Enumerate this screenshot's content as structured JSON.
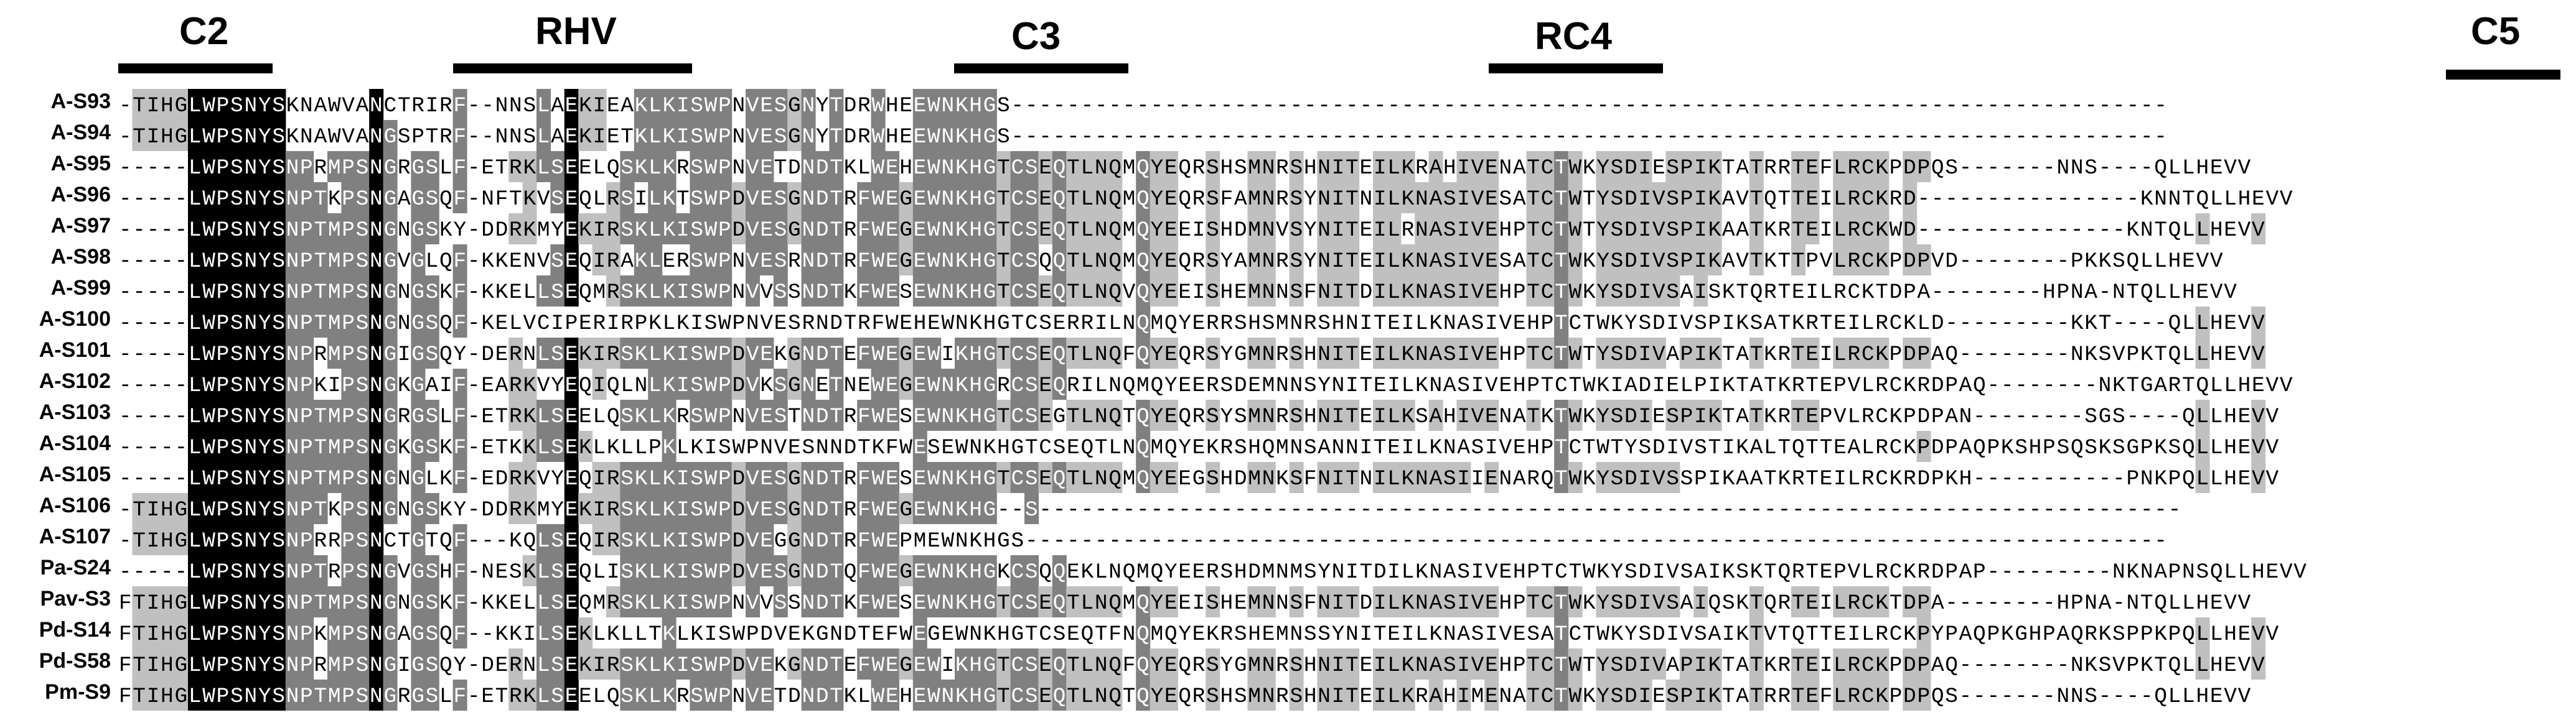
{
  "regions": [
    "C2",
    "RHV",
    "C3",
    "RC4",
    "C5"
  ],
  "rows": [
    {
      "label": "A-S93",
      "seq": "-TIHGLWPSNYSKNAWVANCTRIRF--NNSLAEKIEAKLKISWPNVESGNYTDRWHEEWNKHGS-----------------------------------------------------------------------------------"
    },
    {
      "label": "A-S94",
      "seq": "-TIHGLWPSNYSKNAWVANGSPTRF--NNSLAEKIETKLKISWPNVESGNYTDRWHEEWNKHGS-----------------------------------------------------------------------------------"
    },
    {
      "label": "A-S95",
      "seq": "-----LWPSNYSNPRMPSNGRGSLF-ETRKLSEELQSKLKRSWPNVETDNDTKLWEHEWNKHGTCSEQTLNQMQYEQRSHSMNRSHNITEILKRAHIVENATCTWKYSDIESPIKTATRRTEFLRCKPDPQS-------NNS----QLLHEVV"
    },
    {
      "label": "A-S96",
      "seq": "-----LWPSNYSNPTKPSNGAGSQF-NFTKVSEQLRSILKTSWPDVESGNDTRFWEGEWNKHGTCSEQTLNQMQYEQRSFAMNRSYNITNILKNASIVESATCTWTYSDIVSPIKAVTQTTEILRCKRD----------------KNNTQLLHEVV"
    },
    {
      "label": "A-S97",
      "seq": "-----LWPSNYSNPTMPSNGNGSKY-DDRKMYEKIRSKLKISWPDVESGNDTRFWEGEWNKHGTCSEQTLNQMQYEEISHDMNVSYNITEILRNASIVEHPTCTWTYSDIVSPIKAATKRTEILRCKWD---------------KNTQLLHEVV"
    },
    {
      "label": "A-S98",
      "seq": "-----LWPSNYSNPTMPSNGVGLQF-KKENVSEQIRAKLERSWPNVESRNDTRFWEGEWNKHGTCSQQTLNQMQYEQRSYAMNRSYNITEILKNASIVESATCTWKYSDIVSPIKAVTKTTPVLRCKPDPVD--------PKKSQLLHEVV"
    },
    {
      "label": "A-S99",
      "seq": "-----LWPSNYSNPTMPSNGNGSKF-KKELLSEQMRSKLKISWPNVVSSNDTKFWESEWNKHGTCSEQTLNQVQYEEISHEMNNSFNITDILKNASIVEHPTCTWKYSDIVSAISKTQRTEILRCKTDPA--------HPNA-NTQLLHEVV"
    },
    {
      "label": "A-S100",
      "seq": "-----LWPSNYSNPTMPSNGNGSQF-KELVCIPERIRPKLKISWPNVESRNDTRFWEHEWNKHGTCSERRILNQMQYERRSHSMNRSHNITEILKNASIVEHPTCTWKYSDIVSPIKSATKRTEILRCKLD---------KKT----QLLHEVV"
    },
    {
      "label": "A-S101",
      "seq": "-----LWPSNYSNPRMPSNGIGSQY-DERNLSEKIRSKLKISWPDVEKGNDTEFWEGEWIKHGTCSEQTLNQFQYEQRSYGMNRSHNITEILKNASIVEHPTCTWTYSDIVAPIKTATKRTEILRCKPDPAQ--------NKSVPKTQLLHEVV"
    },
    {
      "label": "A-S102",
      "seq": "-----LWPSNYSNPKIPSNGKGAIF-EARKVYEQIQLNLKISWPDVKSGNETNEWEGEWNKHGRCSEQRILNQMQYEERSDEMNNSYNITEILKNASIVEHPTCTWKIADIELPIKTATKRTEPVLRCKRDPAQ--------NKTGARTQLLHEVV"
    },
    {
      "label": "A-S103",
      "seq": "-----LWPSNYSNPTMPSNGRGSLF-ETRKLSEELQSKLKRSWPNVESTNDTRFWESEWNKHGTCSEGTLNQTQYEQRSYSMNRSHNITEILKSAHIVENATKTWKYSDIESPIKTATKRTEPVLRCKPDPAN--------SGS----QLLHEVV"
    },
    {
      "label": "A-S104",
      "seq": "-----LWPSNYSNPTMPSNGKGSKF-ETKKLSEKLKLLPKLKISWPNVESNNDTKFWESEWNKHGTCSEQTLNQMQYEKRSHQMNSANNITEILKNASIVEHPTCTWTYSDIVSTIKALTQTTEALRCKPDPAQPKSHPSQSKSGPKSQLLHEVV"
    },
    {
      "label": "A-S105",
      "seq": "-----LWPSNYSNPTMPSNGNGLKF-EDRKVYEQIRSKLKISWPDVESGNDTRFWESEWNKHGTCSEQTLNQMQYEEGSHDMNKSFNITNILKNASIIENARQTWKYSDIVSSPIKAATKRTEILRCKRDPKH-----------PNKPQLLHEVV"
    },
    {
      "label": "A-S106",
      "seq": "-TIHGLWPSNYSNPTKPSNGNGSKY-DDRKMYEKIRSKLKISWPDVESGNDTRFWEGEWNKHG--S----------------------------------------------------------------------------------"
    },
    {
      "label": "A-S107",
      "seq": "-TIHGLWPSNYSNPRRPSNCTGTQF---KQLSEQIRSKLKISWPDVEGGNDTRFWEPMEWNKHGS----------------------------------------------------------------------------------"
    },
    {
      "label": "Pa-S24",
      "seq": "-----LWPSNYSNPTRPSNGVGSHF-NESKLSEQLISKLKISWPDVESGNDTQFWEGEWNKHGKCSQQEKLNQMQYEERSHDMNMSYNITDILKNASIVEHPTCTWKYSDIVSAIKSKTQRTEPVLRCKRDPAP---------NKNAPNSQLLHEVV"
    },
    {
      "label": "Pav-S3",
      "seq": "FTIHGLWPSNYSNPTMPSNGNGSKF-KKELLSEQMRSKLKISWPNVVSSNDTKFWESEWNKHGTCSEQTLNQMQYEEISHEMNNSFNITDILKNASIVEHPTCTWKYSDIVSAIQSKTQRTEILRCKTDPA--------HPNA-NTQLLHEVV"
    },
    {
      "label": "Pd-S14",
      "seq": "FTIHGLWPSNYSNPKMPSNGAGSQF--KKILSEKLKLLTKLKISWPDVEKGNDTEFWEGEWNKHGTCSEQTFNQMQYEKRSHEMNSSYNITEILKNASIVESATCTWKYSDIVSAIKTVTQTTEILRCKPYPAQPKGHPAQRKSPPKPQLLHEVV"
    },
    {
      "label": "Pd-S58",
      "seq": "FTIHGLWPSNYSNPRMPSNGIGSQY-DERNLSEKIRSKLKISWPDVEKGNDTEFWEGEWIKHGTCSEQTLNQFQYEQRSYGMNRSHNITEILKNASIVEHPTCTWTYSDIVAPIKTATKRTEILRCKPDPAQ--------NKSVPKTQLLHEVV"
    },
    {
      "label": "Pm-S9",
      "seq": "FTIHGLWPSNYSNPTMPSNGRGSLF-ETRKLSEELQSKLKRSWPNVETDNDTKLWEHEWNKHGTCSEQTLNQTQYEQRSHSMNRSHNITEILKRAHIMENATCTWKYSDIESPIKTATRRTEFLRCKPDPQS-------NNS----QLLHEVV"
    }
  ],
  "colors": {
    "identical": "#000000",
    "conserved": "#808080",
    "similar": "#c0c0c0",
    "label": "#000000"
  }
}
